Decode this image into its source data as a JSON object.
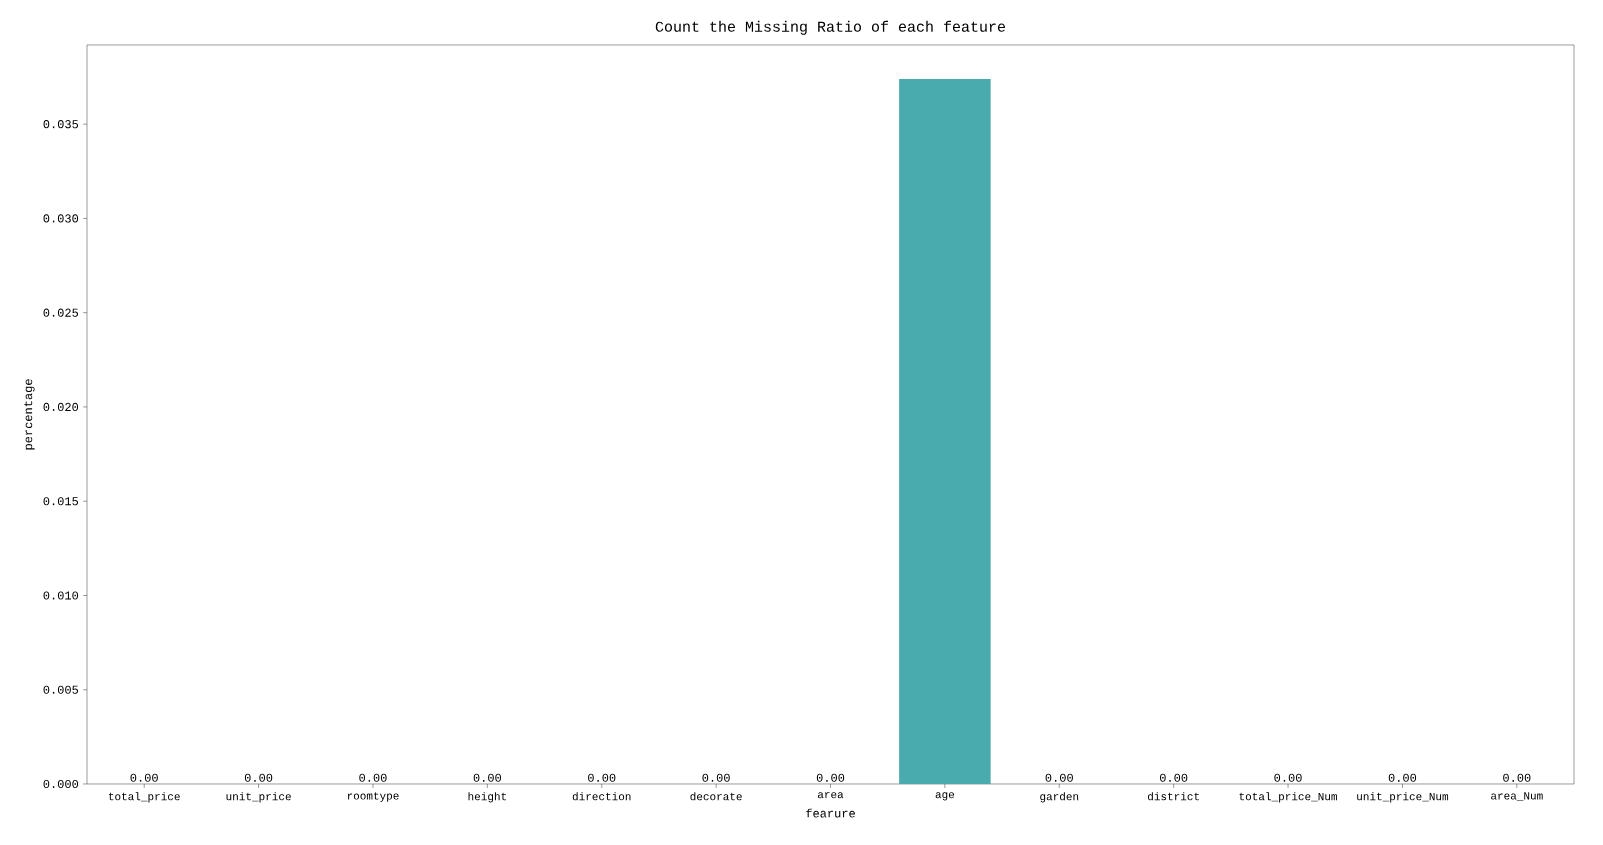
{
  "chart_data": {
    "type": "bar",
    "title": "Count the Missing Ratio of each feature",
    "xlabel": "fearure",
    "ylabel": "percentage",
    "categories": [
      "total_price",
      "unit_price",
      "roomtype",
      "height",
      "direction",
      "decorate",
      "area",
      "age",
      "garden",
      "district",
      "total_price_Num",
      "unit_price_Num",
      "area_Num"
    ],
    "values": [
      0,
      0,
      0,
      0,
      0,
      0,
      0,
      0.0374,
      0,
      0,
      0,
      0,
      0
    ],
    "value_labels": [
      "0.00",
      "0.00",
      "0.00",
      "0.00",
      "0.00",
      "0.00",
      "0.00",
      null,
      "0.00",
      "0.00",
      "0.00",
      "0.00",
      "0.00"
    ],
    "color": "#4aabaf",
    "ylim": [
      0,
      0.0392
    ],
    "yticks": [
      {
        "value": 0,
        "label": "0.000"
      },
      {
        "value": 0.005,
        "label": "0.005"
      },
      {
        "value": 0.01,
        "label": "0.010"
      },
      {
        "value": 0.015,
        "label": "0.015"
      },
      {
        "value": 0.02,
        "label": "0.020"
      },
      {
        "value": 0.025,
        "label": "0.025"
      },
      {
        "value": 0.03,
        "label": "0.030"
      },
      {
        "value": 0.035,
        "label": "0.035"
      }
    ],
    "grid": false
  }
}
